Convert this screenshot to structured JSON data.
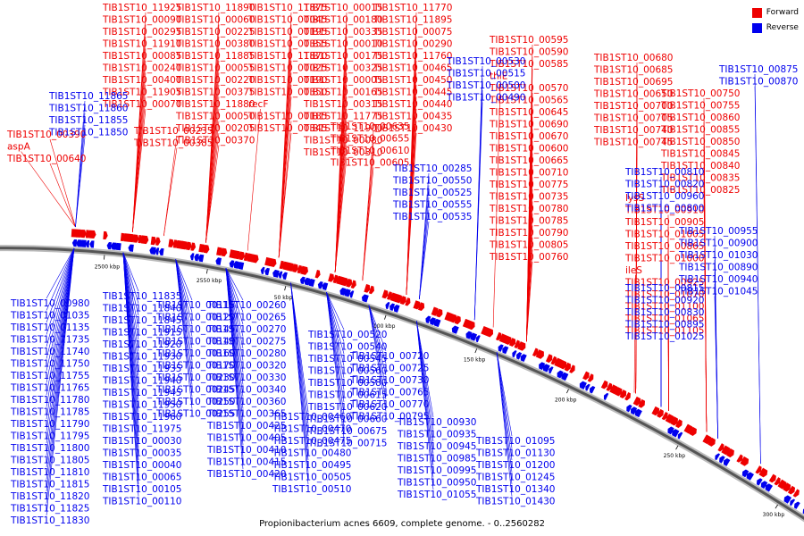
{
  "legend": {
    "forward_label": "Forward",
    "reverse_label": "Reverse",
    "forward_color": "#ee0000",
    "reverse_color": "#0000ee"
  },
  "caption": "Propionibacterium acnes 6609, complete genome. - 0..2560282",
  "ticks": [
    "2500 kbp",
    "2550 kbp",
    "50 kbp",
    "100 kbp",
    "150 kbp",
    "200 kbp",
    "250 kbp",
    "300 kbp"
  ],
  "forward_genes": [
    "TIB1ST10_11925",
    "TIB1ST10_00090",
    "TIB1ST10_00295",
    "TIB1ST10_11910",
    "TIB1ST10_00085",
    "TIB1ST10_00240",
    "TIB1ST10_00400",
    "TIB1ST10_11905",
    "TIB1ST10_00070",
    "TIB1ST10_00235",
    "TIB1ST10_00385",
    "TIB1ST10_11890",
    "TIB1ST10_00060",
    "TIB1ST10_00225",
    "TIB1ST10_00380",
    "TIB1ST10_11885",
    "TIB1ST10_00055",
    "TIB1ST10_00220",
    "TIB1ST10_00375",
    "TIB1ST10_11880",
    "TIB1ST10_00050",
    "TIB1ST10_00205",
    "TIB1ST10_00370",
    "TIB1ST10_11875",
    "TIB1ST10_00045",
    "TIB1ST10_00195",
    "TIB1ST10_00355",
    "TIB1ST10_11870",
    "TIB1ST10_00025",
    "TIB1ST10_00190",
    "TIB1ST10_00350",
    "recF",
    "TIB1ST10_00185",
    "TIB1ST10_00345",
    "TIB1ST10_00015",
    "TIB1ST10_00180",
    "TIB1ST10_00335",
    "TIB1ST10_00010",
    "TIB1ST10_00175",
    "TIB1ST10_00325",
    "TIB1ST10_00005",
    "TIB1ST10_00165",
    "TIB1ST10_00315",
    "TIB1ST10_11775",
    "TIB1ST10_11900",
    "TIB1ST10_00080",
    "TIB1ST10_00310",
    "TIB1ST10_11770",
    "TIB1ST10_11895",
    "TIB1ST10_00075",
    "TIB1ST10_00290",
    "TIB1ST10_11760",
    "TIB1ST10_00465",
    "TIB1ST10_00450",
    "TIB1ST10_00445",
    "TIB1ST10_00440",
    "TIB1ST10_00435",
    "TIB1ST10_00430",
    "TIB1ST10_00390",
    "aspA",
    "TIB1ST10_00640",
    "TIB1ST10_00635",
    "TIB1ST10_00655",
    "TIB1ST10_00610",
    "TIB1ST10_00605",
    "TIB1ST10_00595",
    "TIB1ST10_00590",
    "TIB1ST10_00585",
    "thiE",
    "TIB1ST10_00570",
    "TIB1ST10_00565",
    "TIB1ST10_00645",
    "TIB1ST10_00690",
    "TIB1ST10_00670",
    "TIB1ST10_00600",
    "TIB1ST10_00665",
    "TIB1ST10_00710",
    "TIB1ST10_00775",
    "TIB1ST10_00735",
    "TIB1ST10_00780",
    "TIB1ST10_00785",
    "TIB1ST10_00790",
    "TIB1ST10_00805",
    "TIB1ST10_00760",
    "TIB1ST10_00680",
    "TIB1ST10_00685",
    "TIB1ST10_00695",
    "TIB1ST10_00650",
    "TIB1ST10_00700",
    "TIB1ST10_00705",
    "TIB1ST10_00740",
    "TIB1ST10_00745",
    "TIB1ST10_00750",
    "TIB1ST10_00755",
    "TIB1ST10_00860",
    "TIB1ST10_00855",
    "TIB1ST10_00850",
    "TIB1ST10_00845",
    "TIB1ST10_00840",
    "TIB1ST10_00835",
    "TIB1ST10_00825",
    "lysS",
    "TIB1ST10_00910",
    "TIB1ST10_00905",
    "TIB1ST10_01005",
    "TIB1ST10_00865",
    "TIB1ST10_01000",
    "ileS",
    "TIB1ST10_00925",
    "TIB1ST10_01070",
    "TIB1ST10_01100",
    "TIB1ST10_01065",
    "TIB1ST10_01105"
  ],
  "reverse_genes": [
    "TIB1ST10_00530",
    "TIB1ST10_00515",
    "TIB1ST10_00500",
    "TIB1ST10_00490",
    "TIB1ST10_00875",
    "TIB1ST10_00870",
    "TIB1ST10_11865",
    "TIB1ST10_11860",
    "TIB1ST10_11855",
    "TIB1ST10_11850",
    "TIB1ST10_00285",
    "TIB1ST10_00550",
    "TIB1ST10_00525",
    "TIB1ST10_00555",
    "TIB1ST10_00535",
    "TIB1ST10_00810",
    "TIB1ST10_00820",
    "TIB1ST10_00960",
    "TIB1ST10_00800",
    "TIB1ST10_00955",
    "TIB1ST10_00900",
    "TIB1ST10_01030",
    "TIB1ST10_00890",
    "TIB1ST10_00940",
    "TIB1ST10_01045",
    "TIB1ST10_00815",
    "TIB1ST10_00920",
    "TIB1ST10_00830",
    "TIB1ST10_00895",
    "TIB1ST10_01025",
    "TIB1ST10_00980",
    "TIB1ST10_01035",
    "TIB1ST10_01135",
    "TIB1ST10_11735",
    "TIB1ST10_11740",
    "TIB1ST10_11750",
    "TIB1ST10_11755",
    "TIB1ST10_11765",
    "TIB1ST10_11780",
    "TIB1ST10_11785",
    "TIB1ST10_11790",
    "TIB1ST10_11795",
    "TIB1ST10_11800",
    "TIB1ST10_11805",
    "TIB1ST10_11810",
    "TIB1ST10_11815",
    "TIB1ST10_11820",
    "TIB1ST10_11825",
    "TIB1ST10_11830",
    "TIB1ST10_11835",
    "TIB1ST10_11840",
    "TIB1ST10_11845",
    "TIB1ST10_11915",
    "TIB1ST10_11920",
    "TIB1ST10_11930",
    "TIB1ST10_11935",
    "TIB1ST10_11940",
    "TIB1ST10_11945",
    "TIB1ST10_11950",
    "TIB1ST10_11960",
    "TIB1ST10_11975",
    "TIB1ST10_00030",
    "TIB1ST10_00035",
    "TIB1ST10_00040",
    "TIB1ST10_00065",
    "TIB1ST10_00105",
    "TIB1ST10_00110",
    "TIB1ST10_00115",
    "TIB1ST10_00120",
    "TIB1ST10_00145",
    "TIB1ST10_00140",
    "TIB1ST10_00160",
    "TIB1ST10_00170",
    "TIB1ST10_00230",
    "TIB1ST10_00245",
    "TIB1ST10_00250",
    "TIB1ST10_00255",
    "TIB1ST10_00260",
    "TIB1ST10_00265",
    "TIB1ST10_00270",
    "TIB1ST10_00275",
    "TIB1ST10_00280",
    "TIB1ST10_00320",
    "TIB1ST10_00330",
    "TIB1ST10_00340",
    "TIB1ST10_00360",
    "TIB1ST10_00365",
    "TIB1ST10_00425",
    "TIB1ST10_00405",
    "TIB1ST10_00410",
    "TIB1ST10_00415",
    "TIB1ST10_00420",
    "TIB1ST10_00460",
    "TIB1ST10_00470",
    "TIB1ST10_00475",
    "TIB1ST10_00480",
    "TIB1ST10_00495",
    "TIB1ST10_00505",
    "TIB1ST10_00510",
    "TIB1ST10_00520",
    "TIB1ST10_00540",
    "TIB1ST10_00545",
    "TIB1ST10_00560",
    "TIB1ST10_00580",
    "TIB1ST10_00615",
    "TIB1ST10_00620",
    "TIB1ST10_00660",
    "TIB1ST10_00675",
    "TIB1ST10_00715",
    "TIB1ST10_00720",
    "TIB1ST10_00725",
    "TIB1ST10_00730",
    "TIB1ST10_00765",
    "TIB1ST10_00770",
    "TIB1ST10_00795",
    "TIB1ST10_00930",
    "TIB1ST10_00935",
    "TIB1ST10_00945",
    "TIB1ST10_00985",
    "TIB1ST10_00995",
    "TIB1ST10_00950",
    "TIB1ST10_01055",
    "TIB1ST10_01095",
    "TIB1ST10_01130",
    "TIB1ST10_01200",
    "TIB1ST10_01245",
    "TIB1ST10_01340",
    "TIB1ST10_01430"
  ]
}
